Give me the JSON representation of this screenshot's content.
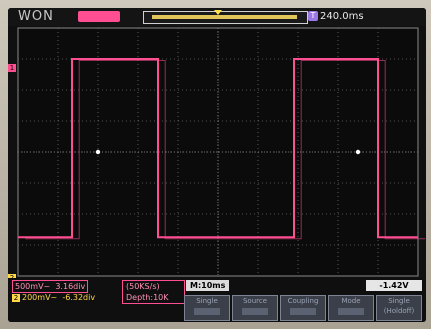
{
  "header": {
    "brand": "WON",
    "trigger_position": "240.0ms",
    "trigger_badge": "T"
  },
  "channels": [
    {
      "id": "1",
      "scale": "500mV~",
      "position": "3.16div",
      "color": "#ff4f92"
    },
    {
      "id": "2",
      "scale": "200mV~",
      "position": "-6.32div",
      "color": "#ffd84a"
    }
  ],
  "acquisition": {
    "sample_rate": "(50KS/s)",
    "depth": "Depth:10K"
  },
  "timebase": "M:10ms",
  "trigger_level": "-1.42V",
  "softkeys": [
    {
      "label": "Single"
    },
    {
      "label": "Source"
    },
    {
      "label": "Coupling"
    },
    {
      "label": "Mode"
    },
    {
      "label": "Single",
      "sub": "(Holdoff)"
    }
  ],
  "chart_data": {
    "type": "line",
    "grid": true,
    "divisions": {
      "x": 10,
      "y": 8
    },
    "series": [
      {
        "color": "#ff4f92",
        "points_div": [
          [
            0,
            1.25
          ],
          [
            1.35,
            1.25
          ],
          [
            1.35,
            7.0
          ],
          [
            3.5,
            7.0
          ],
          [
            3.5,
            1.25
          ],
          [
            6.9,
            1.25
          ],
          [
            6.9,
            7.0
          ],
          [
            9.0,
            7.0
          ],
          [
            9.0,
            1.25
          ],
          [
            10,
            1.25
          ]
        ]
      }
    ]
  }
}
